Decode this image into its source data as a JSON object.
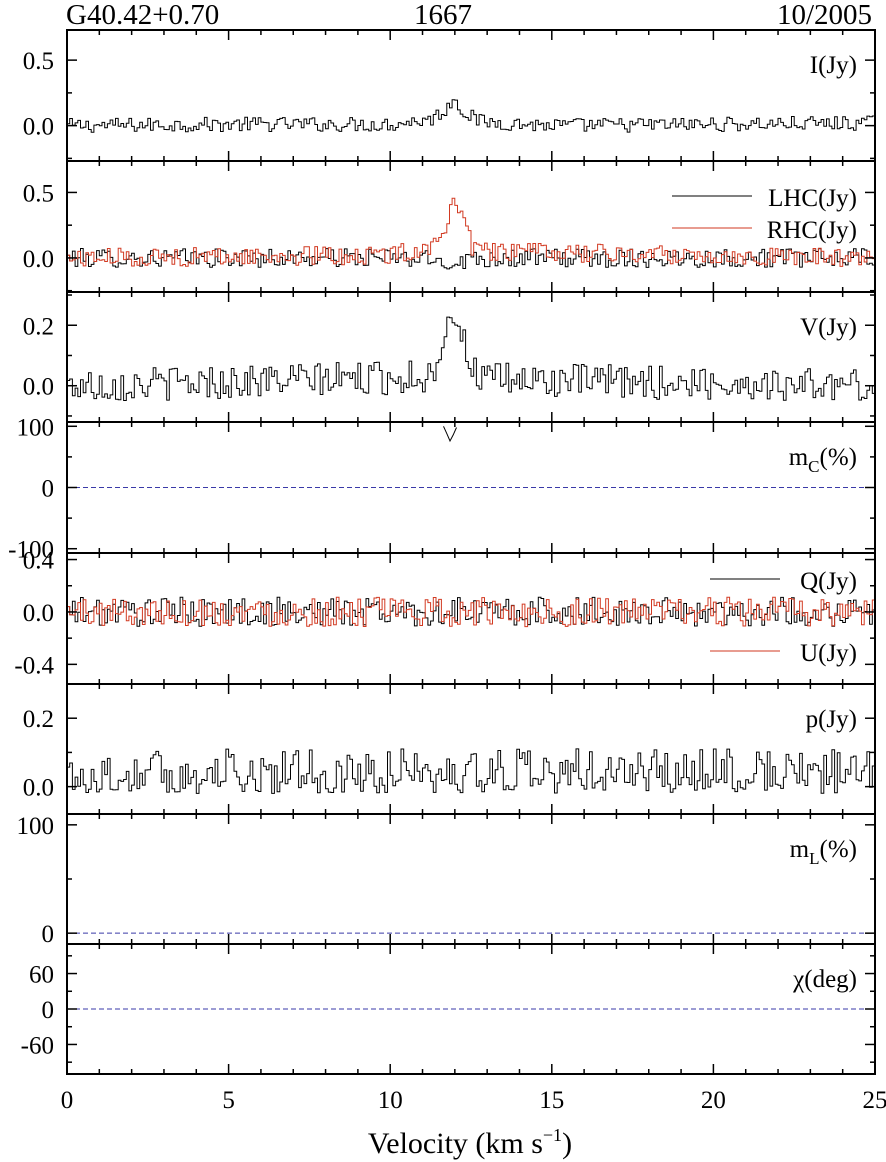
{
  "header": {
    "source": "G40.42+0.70",
    "frequency": "1667",
    "date": "10/2005"
  },
  "xaxis": {
    "label_main": "Velocity (km s",
    "label_sup": "−1",
    "label_close": ")",
    "range": [
      0,
      25
    ],
    "ticks": [
      "0",
      "5",
      "10",
      "15",
      "20",
      "25"
    ]
  },
  "colors": {
    "trace_black": "#000000",
    "trace_red": "#d23a22",
    "zero_line": "#3a3aa8"
  },
  "chart_data": [
    {
      "type": "line",
      "panel": "I",
      "label": "I(Jy)",
      "ylim": [
        -0.27,
        0.73
      ],
      "yticks": [
        "0.5",
        "0.0"
      ],
      "ytick_values": [
        0.5,
        0.0
      ],
      "series": [
        {
          "name": "I(Jy)",
          "color": "#000000",
          "x": [
            0,
            5,
            10,
            11.3,
            11.7,
            12.0,
            12.3,
            12.8,
            15,
            20,
            25
          ],
          "y": [
            0.0,
            0.01,
            0.01,
            0.05,
            0.12,
            0.21,
            0.1,
            0.03,
            0.0,
            0.01,
            0.02
          ]
        }
      ],
      "noise": 0.035
    },
    {
      "type": "line",
      "panel": "LHC_RHC",
      "label": "",
      "ylim": [
        -0.26,
        0.74
      ],
      "yticks": [
        "0.5",
        "0.0"
      ],
      "ytick_values": [
        0.5,
        0.0
      ],
      "legend": [
        "LHC(Jy)",
        "RHC(Jy)"
      ],
      "series": [
        {
          "name": "LHC(Jy)",
          "color": "#000000",
          "x": [
            0,
            10,
            11.5,
            12.0,
            12.5,
            25
          ],
          "y": [
            0.0,
            0.0,
            -0.02,
            -0.04,
            0.0,
            0.0
          ]
        },
        {
          "name": "RHC(Jy)",
          "color": "#d23a22",
          "x": [
            0,
            10,
            11.4,
            11.8,
            12.0,
            12.2,
            12.6,
            25
          ],
          "y": [
            0.0,
            0.02,
            0.1,
            0.3,
            0.45,
            0.3,
            0.05,
            0.0
          ]
        }
      ],
      "noise": 0.045
    },
    {
      "type": "line",
      "panel": "V",
      "label": "V(Jy)",
      "ylim": [
        -0.12,
        0.31
      ],
      "yticks": [
        "0.2",
        "0.0"
      ],
      "ytick_values": [
        0.2,
        0.0
      ],
      "series": [
        {
          "name": "V(Jy)",
          "color": "#000000",
          "x": [
            0,
            11.3,
            11.6,
            11.9,
            12.1,
            12.4,
            12.8,
            25
          ],
          "y": [
            0.0,
            0.03,
            0.15,
            0.26,
            0.2,
            0.1,
            0.02,
            0.0
          ]
        }
      ],
      "noise": 0.035
    },
    {
      "type": "line",
      "panel": "mC",
      "label": "m",
      "label_sub": "C",
      "label_unit": "(%)",
      "ylim": [
        -107,
        107
      ],
      "yticks": [
        "100",
        "0",
        "-100"
      ],
      "ytick_values": [
        100,
        0,
        -100
      ],
      "zero_line": true,
      "series": [
        {
          "name": "m_C(%)",
          "color": "#000000",
          "x": [
            11.65,
            11.75,
            11.85,
            11.95,
            12.05
          ],
          "y": [
            100,
            88,
            76,
            86,
            98
          ]
        }
      ],
      "noise": 0
    },
    {
      "type": "line",
      "panel": "QU",
      "label": "",
      "ylim": [
        -0.55,
        0.45
      ],
      "yticks": [
        "0.4",
        "0.0",
        "-0.4"
      ],
      "ytick_values": [
        0.4,
        0.0,
        -0.4
      ],
      "legend": [
        "Q(Jy)",
        "U(Jy)"
      ],
      "series": [
        {
          "name": "Q(Jy)",
          "color": "#000000",
          "x": [
            0,
            25
          ],
          "y": [
            0.0,
            0.0
          ]
        },
        {
          "name": "U(Jy)",
          "color": "#d23a22",
          "x": [
            0,
            25
          ],
          "y": [
            0.0,
            0.0
          ]
        }
      ],
      "noise": 0.07
    },
    {
      "type": "line",
      "panel": "p",
      "label": "p(Jy)",
      "ylim": [
        -0.08,
        0.3
      ],
      "yticks": [
        "0.2",
        "0.0"
      ],
      "ytick_values": [
        0.2,
        0.0
      ],
      "series": [
        {
          "name": "p(Jy)",
          "color": "#000000",
          "x": [
            0,
            25
          ],
          "y": [
            0.03,
            0.03
          ]
        }
      ],
      "noise": 0.04
    },
    {
      "type": "line",
      "panel": "mL",
      "label": "m",
      "label_sub": "L",
      "label_unit": "(%)",
      "ylim": [
        -10,
        110
      ],
      "yticks": [
        "100",
        "0"
      ],
      "ytick_values": [
        100,
        0
      ],
      "zero_line": true,
      "series": [],
      "noise": 0
    },
    {
      "type": "line",
      "panel": "chi",
      "label": "χ(deg)",
      "ylim": [
        -110,
        110
      ],
      "yticks": [
        "60",
        "0",
        "-60"
      ],
      "ytick_values": [
        60,
        0,
        -60
      ],
      "zero_line": true,
      "series": [],
      "noise": 0
    }
  ]
}
